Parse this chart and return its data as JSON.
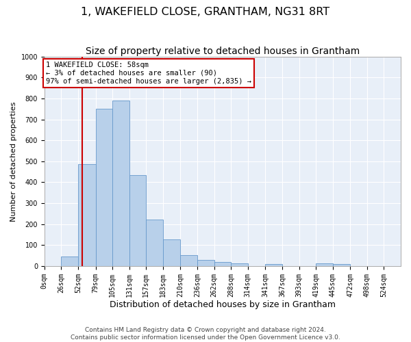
{
  "title": "1, WAKEFIELD CLOSE, GRANTHAM, NG31 8RT",
  "subtitle": "Size of property relative to detached houses in Grantham",
  "xlabel": "Distribution of detached houses by size in Grantham",
  "ylabel": "Number of detached properties",
  "bar_labels": [
    "0sqm",
    "26sqm",
    "52sqm",
    "79sqm",
    "105sqm",
    "131sqm",
    "157sqm",
    "183sqm",
    "210sqm",
    "236sqm",
    "262sqm",
    "288sqm",
    "314sqm",
    "341sqm",
    "367sqm",
    "393sqm",
    "419sqm",
    "445sqm",
    "472sqm",
    "498sqm",
    "524sqm"
  ],
  "bin_edges": [
    0,
    26,
    52,
    79,
    105,
    131,
    157,
    183,
    210,
    236,
    262,
    288,
    314,
    341,
    367,
    393,
    419,
    445,
    472,
    498,
    524,
    550
  ],
  "bar_values": [
    0,
    45,
    485,
    750,
    790,
    435,
    222,
    128,
    52,
    30,
    18,
    12,
    0,
    10,
    0,
    0,
    12,
    10,
    0,
    0,
    0
  ],
  "bar_color": "#b8d0ea",
  "bar_edge_color": "#6699cc",
  "background_color": "#e8eff8",
  "grid_color": "#ffffff",
  "property_line_x": 58,
  "property_line_color": "#cc0000",
  "annotation_text": "1 WAKEFIELD CLOSE: 58sqm\n← 3% of detached houses are smaller (90)\n97% of semi-detached houses are larger (2,835) →",
  "annotation_box_edgecolor": "#cc0000",
  "ylim": [
    0,
    1000
  ],
  "yticks": [
    0,
    100,
    200,
    300,
    400,
    500,
    600,
    700,
    800,
    900,
    1000
  ],
  "footer_line1": "Contains HM Land Registry data © Crown copyright and database right 2024.",
  "footer_line2": "Contains public sector information licensed under the Open Government Licence v3.0.",
  "title_fontsize": 11.5,
  "subtitle_fontsize": 10,
  "xlabel_fontsize": 9,
  "ylabel_fontsize": 8,
  "tick_fontsize": 7,
  "annot_fontsize": 7.5,
  "footer_fontsize": 6.5
}
